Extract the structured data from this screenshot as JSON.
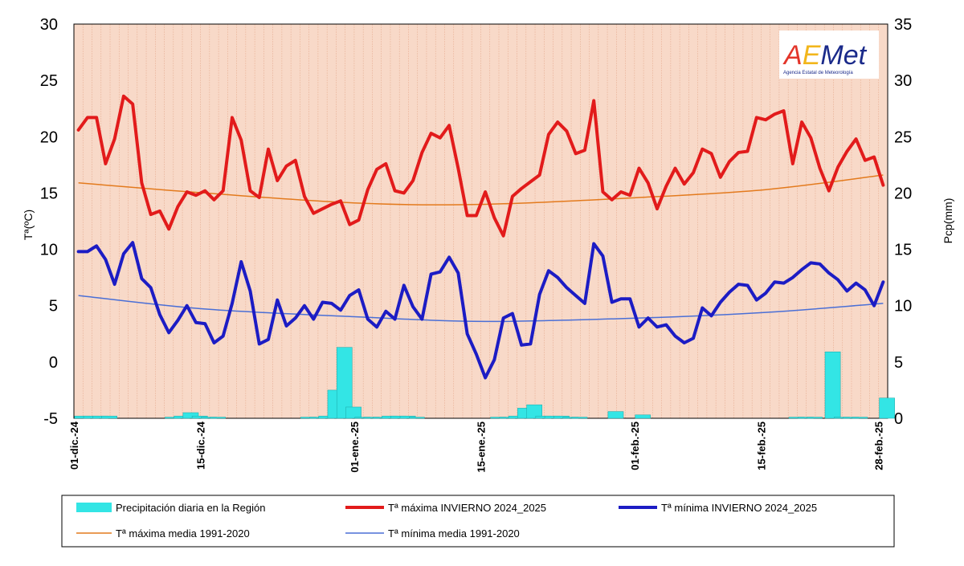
{
  "chart_data": {
    "type": "line",
    "title": "",
    "ylabel": "Tª(ºC)",
    "y2label": "Pcp(mm)",
    "ylim": [
      -5,
      30
    ],
    "y2lim": [
      0,
      35
    ],
    "yticks": [
      "30",
      "25",
      "20",
      "15",
      "10",
      "5",
      "0",
      "-5"
    ],
    "y2ticks": [
      "35",
      "30",
      "25",
      "20",
      "15",
      "10",
      "5",
      "0"
    ],
    "xtick_labels": [
      "01-dic.-24",
      "15-dic.-24",
      "01-ene.-25",
      "15-ene.-25",
      "01-feb.-25",
      "15-feb.-25",
      "28-feb.-25"
    ],
    "xtick_index": [
      0,
      14,
      31,
      45,
      62,
      76,
      89
    ],
    "grid": true,
    "legend_position": "bottom",
    "series": [
      {
        "name": "Precipitación diaria en la Región",
        "type": "bar",
        "color": "#33e5e5",
        "axis": "right",
        "values": [
          0.2,
          0.2,
          0.2,
          0.2,
          0,
          0,
          0,
          0,
          0,
          0,
          0.1,
          0.2,
          0.5,
          0.2,
          0.1,
          0.1,
          0,
          0,
          0,
          0,
          0,
          0,
          0,
          0,
          0,
          0.1,
          0.1,
          0.2,
          2.5,
          6.3,
          1.0,
          0.1,
          0.1,
          0.1,
          0.2,
          0.2,
          0.2,
          0.1,
          0,
          0,
          0,
          0,
          0,
          0,
          0,
          0,
          0.1,
          0.1,
          0.2,
          0.9,
          1.2,
          0.2,
          0.2,
          0.2,
          0.1,
          0.1,
          0,
          0,
          0,
          0.6,
          0,
          0,
          0.3,
          0,
          0,
          0,
          0,
          0,
          0,
          0,
          0,
          0,
          0,
          0,
          0,
          0,
          0,
          0,
          0,
          0.1,
          0.1,
          0.1,
          0,
          5.9,
          0.1,
          0.1,
          0.1,
          0,
          0,
          1.8
        ]
      },
      {
        "name": "Tª máxima INVIERNO 2024_2025",
        "type": "line",
        "color": "#e21b1b",
        "axis": "left",
        "values": [
          20.6,
          21.7,
          21.7,
          17.6,
          19.8,
          23.6,
          22.9,
          15.9,
          13.1,
          13.4,
          11.8,
          13.8,
          15.1,
          14.8,
          15.2,
          14.4,
          15.2,
          21.7,
          19.7,
          15.2,
          14.6,
          18.9,
          16.1,
          17.4,
          17.9,
          14.7,
          13.2,
          13.6,
          14.0,
          14.3,
          12.2,
          12.6,
          15.3,
          17.1,
          17.6,
          15.2,
          15.0,
          16.1,
          18.6,
          20.3,
          19.9,
          21.0,
          17.2,
          13.0,
          13.0,
          15.1,
          12.8,
          11.2,
          14.7,
          15.4,
          16.0,
          16.6,
          20.2,
          21.3,
          20.5,
          18.5,
          18.8,
          23.2,
          15.1,
          14.4,
          15.1,
          14.8,
          17.2,
          15.9,
          13.6,
          15.6,
          17.2,
          15.8,
          16.8,
          18.9,
          18.5,
          16.4,
          17.8,
          18.6,
          18.7,
          21.7,
          21.5,
          22.0,
          22.3,
          17.6,
          21.3,
          19.9,
          17.2,
          15.2,
          17.3,
          18.7,
          19.8,
          17.9,
          18.2,
          15.7
        ]
      },
      {
        "name": "Tª mínima INVIERNO 2024_2025",
        "type": "line",
        "color": "#1c1cc4",
        "axis": "left",
        "values": [
          9.8,
          9.8,
          10.3,
          9.1,
          6.9,
          9.6,
          10.6,
          7.4,
          6.6,
          4.2,
          2.6,
          3.7,
          5.0,
          3.5,
          3.4,
          1.7,
          2.3,
          5.2,
          8.9,
          6.3,
          1.6,
          2.0,
          5.5,
          3.2,
          3.9,
          5.0,
          3.8,
          5.3,
          5.2,
          4.6,
          5.9,
          6.4,
          3.8,
          3.1,
          4.5,
          3.8,
          6.8,
          4.9,
          3.8,
          7.8,
          8.0,
          9.3,
          7.9,
          2.5,
          0.7,
          -1.4,
          0.2,
          3.9,
          4.3,
          1.5,
          1.6,
          6.0,
          8.1,
          7.5,
          6.6,
          5.9,
          5.2,
          10.5,
          9.4,
          5.3,
          5.6,
          5.6,
          3.1,
          3.9,
          3.1,
          3.3,
          2.3,
          1.7,
          2.1,
          4.8,
          4.1,
          5.3,
          6.2,
          6.9,
          6.8,
          5.5,
          6.1,
          7.1,
          7.0,
          7.5,
          8.2,
          8.8,
          8.7,
          7.9,
          7.3,
          6.3,
          7.0,
          6.4,
          5.0,
          7.1
        ]
      },
      {
        "name": "Tª máxima media 1991-2020",
        "type": "line",
        "color": "#e37a1d",
        "axis": "left",
        "values_desc": "smooth climatology curve",
        "points": [
          [
            0,
            15.9
          ],
          [
            14,
            15.0
          ],
          [
            31,
            14.1
          ],
          [
            45,
            14.0
          ],
          [
            62,
            14.6
          ],
          [
            76,
            15.3
          ],
          [
            89,
            16.6
          ]
        ]
      },
      {
        "name": "Tª mínima media 1991-2020",
        "type": "line",
        "color": "#4a6fd6",
        "axis": "left",
        "points": [
          [
            0,
            5.9
          ],
          [
            14,
            4.7
          ],
          [
            31,
            4.0
          ],
          [
            45,
            3.6
          ],
          [
            62,
            3.9
          ],
          [
            76,
            4.4
          ],
          [
            89,
            5.2
          ]
        ]
      }
    ]
  },
  "logo": {
    "text": "AEMet",
    "subtitle": "Agencia Estatal de Meteorología"
  }
}
